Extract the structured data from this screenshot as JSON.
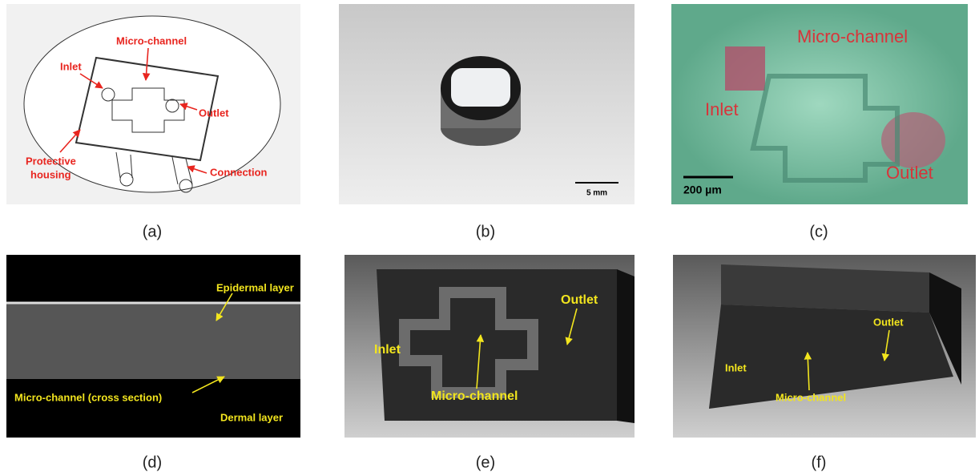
{
  "panels": [
    {
      "label": "(a)",
      "annotations": [
        "Micro-channel",
        "Inlet",
        "Outlet",
        "Protective",
        "housing",
        "Connection"
      ]
    },
    {
      "label": "(b)",
      "annotations": [
        "5 mm"
      ]
    },
    {
      "label": "(c)",
      "annotations": [
        "Micro-channel",
        "Inlet",
        "Outlet",
        "200 µm"
      ]
    },
    {
      "label": "(d)",
      "annotations": [
        "Epidermal layer",
        "Micro-channel (cross section)",
        "Dermal layer"
      ]
    },
    {
      "label": "(e)",
      "annotations": [
        "Inlet",
        "Micro-channel",
        "Outlet"
      ]
    },
    {
      "label": "(f)",
      "annotations": [
        "Inlet",
        "Micro-channel",
        "Outlet"
      ]
    }
  ]
}
